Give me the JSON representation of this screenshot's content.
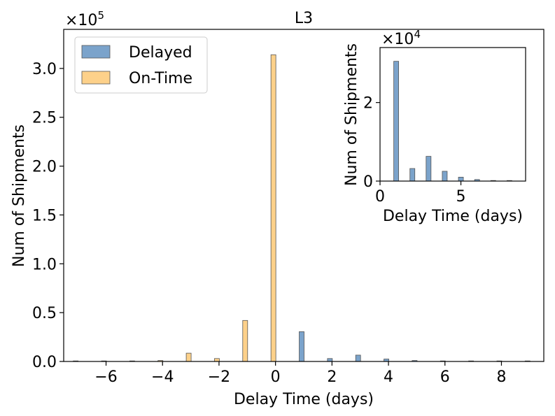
{
  "chart_data": [
    {
      "type": "bar",
      "title": "L3",
      "xlabel": "Delay Time (days)",
      "ylabel": "Num of Shipments",
      "y_multiplier": "×10",
      "y_multiplier_exp": "5",
      "xlim": [
        -7.5,
        9.5
      ],
      "ylim": [
        0,
        3.4
      ],
      "x_ticks": [
        -6,
        -4,
        -2,
        0,
        2,
        4,
        6,
        8
      ],
      "x_tick_labels": [
        "−6",
        "−4",
        "−2",
        "0",
        "2",
        "4",
        "6",
        "8"
      ],
      "y_ticks": [
        0,
        0.5,
        1.0,
        1.5,
        2.0,
        2.5,
        3.0
      ],
      "y_tick_labels": [
        "0.0",
        "0.5",
        "1.0",
        "1.5",
        "2.0",
        "2.5",
        "3.0"
      ],
      "legend_position": "top-left",
      "series": [
        {
          "name": "Delayed",
          "color": "#7ba3cb",
          "x": [
            1,
            2,
            3,
            4,
            5,
            6,
            7,
            8,
            9
          ],
          "values": [
            0.305,
            0.03,
            0.065,
            0.025,
            0.01,
            0.004,
            0.002,
            0.001,
            0.001
          ]
        },
        {
          "name": "On-Time",
          "color": "#fdd18a",
          "x": [
            -7,
            -6,
            -5,
            -4,
            -3,
            -2,
            -1,
            0
          ],
          "values": [
            0.001,
            0.001,
            0.002,
            0.01,
            0.085,
            0.03,
            0.42,
            3.14
          ]
        }
      ]
    },
    {
      "type": "bar",
      "title": "",
      "xlabel": "Delay Time (days)",
      "ylabel": "Num of Shipments",
      "y_multiplier": "×10",
      "y_multiplier_exp": "4",
      "xlim": [
        0,
        9
      ],
      "ylim": [
        0,
        3.4
      ],
      "x_ticks": [
        0,
        5
      ],
      "x_tick_labels": [
        "0",
        "5"
      ],
      "y_ticks": [
        0,
        2
      ],
      "y_tick_labels": [
        "0",
        "2"
      ],
      "series": [
        {
          "name": "Delayed",
          "color": "#7ba3cb",
          "x": [
            1,
            2,
            3,
            4,
            5,
            6,
            7,
            8
          ],
          "values": [
            3.05,
            0.32,
            0.63,
            0.25,
            0.1,
            0.04,
            0.015,
            0.01
          ]
        }
      ]
    }
  ]
}
